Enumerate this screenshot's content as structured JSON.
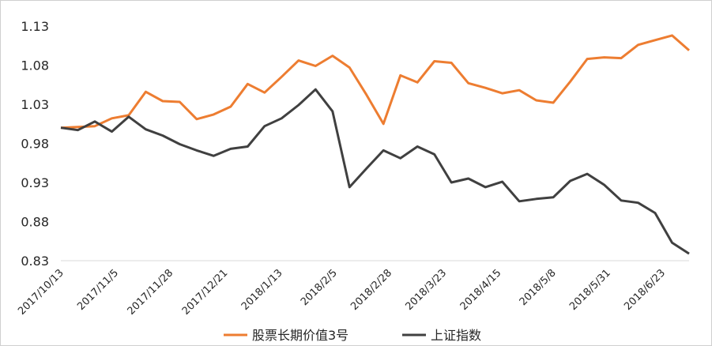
{
  "chart_data": {
    "type": "line",
    "title": "",
    "xlabel": "",
    "ylabel": "",
    "ylim": [
      0.83,
      1.13
    ],
    "y_ticks": [
      "1.13",
      "1.08",
      "1.03",
      "0.98",
      "0.93",
      "0.88",
      "0.83"
    ],
    "x_tick_labels": [
      "2017/10/13",
      "2017/11/5",
      "2017/11/28",
      "2017/12/21",
      "2018/1/13",
      "2018/2/5",
      "2018/2/28",
      "2018/3/23",
      "2018/4/15",
      "2018/5/8",
      "2018/5/31",
      "2018/6/23"
    ],
    "legend_position": "bottom",
    "grid": false,
    "series": [
      {
        "name": "股票长期价值3号",
        "color": "#ED7D31",
        "values": [
          1.0,
          1.001,
          1.002,
          1.012,
          1.016,
          1.046,
          1.034,
          1.033,
          1.011,
          1.017,
          1.027,
          1.056,
          1.045,
          1.065,
          1.086,
          1.079,
          1.092,
          1.077,
          1.042,
          1.005,
          1.067,
          1.058,
          1.085,
          1.083,
          1.057,
          1.051,
          1.044,
          1.048,
          1.035,
          1.032,
          1.059,
          1.088,
          1.09,
          1.089,
          1.106,
          1.112,
          1.118,
          1.099
        ]
      },
      {
        "name": "上证指数",
        "color": "#404040",
        "values": [
          1.0,
          0.997,
          1.008,
          0.995,
          1.014,
          0.998,
          0.99,
          0.979,
          0.971,
          0.964,
          0.973,
          0.976,
          1.002,
          1.012,
          1.029,
          1.049,
          1.021,
          0.924,
          0.948,
          0.971,
          0.961,
          0.976,
          0.966,
          0.93,
          0.935,
          0.924,
          0.931,
          0.906,
          0.909,
          0.911,
          0.932,
          0.941,
          0.927,
          0.907,
          0.904,
          0.891,
          0.853,
          0.839
        ]
      }
    ]
  }
}
